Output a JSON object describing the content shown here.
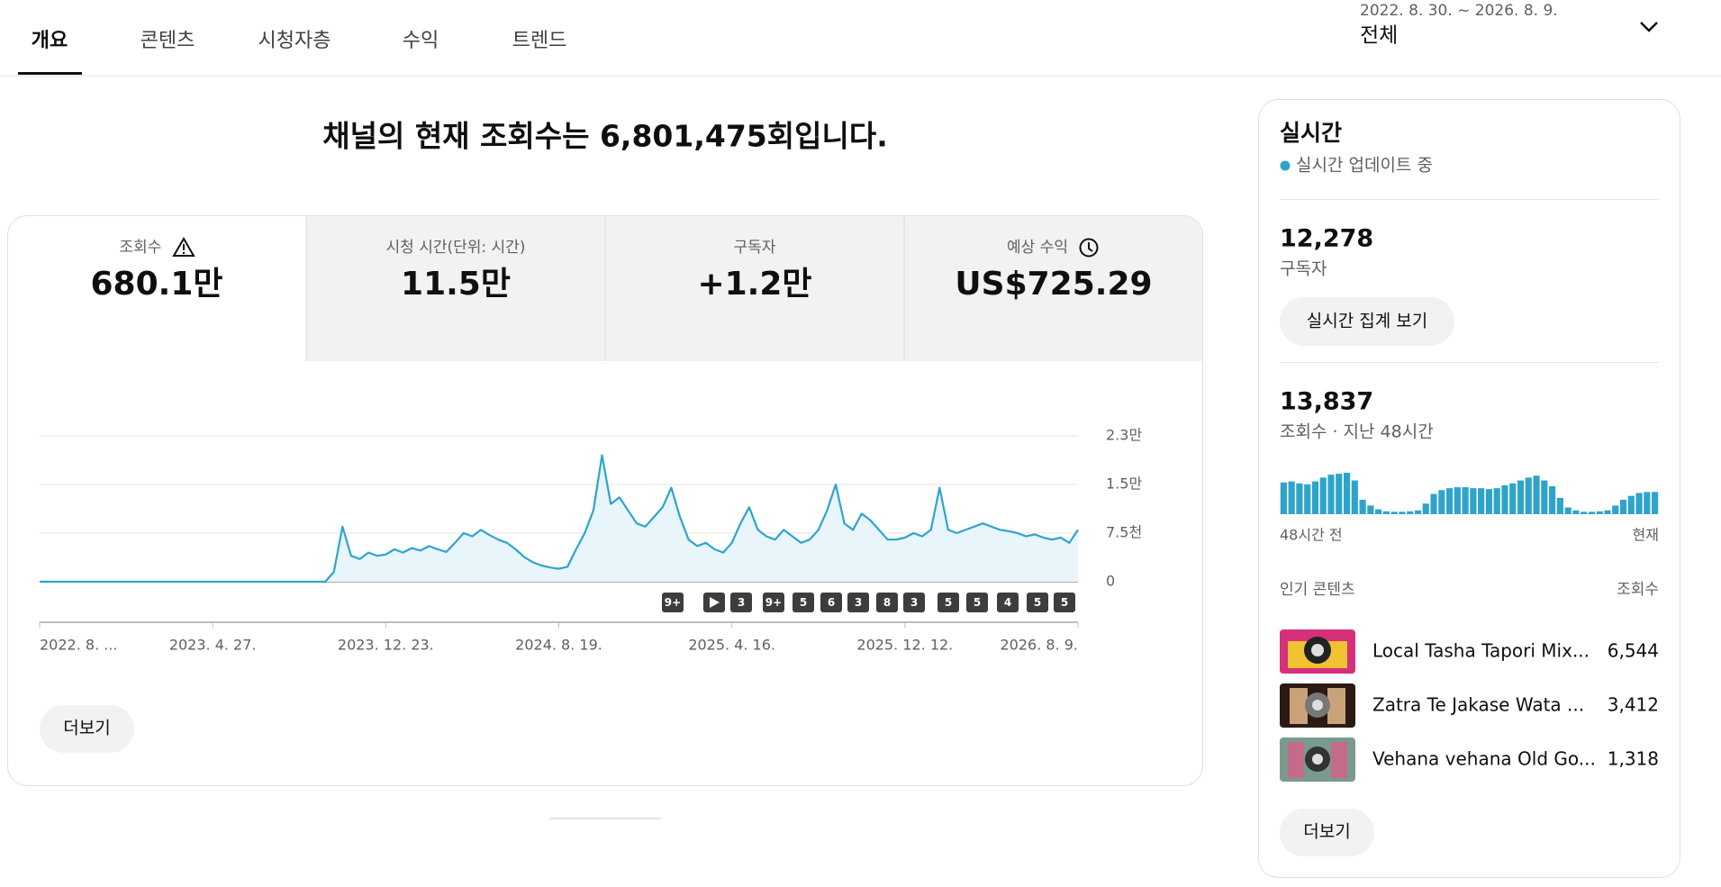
{
  "tabs": [
    "개요",
    "콘텐츠",
    "시청자층",
    "수익",
    "트렌드"
  ],
  "date_range": "2022. 8. 30. ~ 2026. 8. 9.",
  "period": "전체",
  "headline": "채널의 현재 조회수는 6,801,475회입니다.",
  "metrics": [
    {
      "label": "조회수",
      "value": "680.1만"
    },
    {
      "label": "시청 시간(단위: 시간)",
      "value": "11.5만"
    },
    {
      "label": "구독자",
      "value": "+1.2만"
    },
    {
      "label": "예상 수익",
      "value": "US$725.29"
    }
  ],
  "chart_data": {
    "type": "line",
    "color": "#2fa4cb",
    "area_color": "#e8f5fb",
    "grid": true,
    "categories": [
      "2022. 8. ...",
      null,
      null,
      null,
      null,
      null,
      null,
      null,
      null,
      null,
      null,
      null,
      null,
      null,
      null,
      null,
      null,
      null,
      null,
      null,
      "2023. 4. 27.",
      null,
      null,
      null,
      null,
      null,
      null,
      null,
      null,
      null,
      null,
      null,
      null,
      null,
      null,
      null,
      null,
      null,
      null,
      null,
      "2023. 12. 23.",
      null,
      null,
      null,
      null,
      null,
      null,
      null,
      null,
      null,
      null,
      null,
      null,
      null,
      null,
      null,
      null,
      null,
      null,
      null,
      "2024. 8. 19.",
      null,
      null,
      null,
      null,
      null,
      null,
      null,
      null,
      null,
      null,
      null,
      null,
      null,
      null,
      null,
      null,
      null,
      null,
      null,
      "2025. 4. 16.",
      null,
      null,
      null,
      null,
      null,
      null,
      null,
      null,
      null,
      null,
      null,
      null,
      null,
      null,
      null,
      null,
      null,
      null,
      null,
      "2025. 12. 12.",
      null,
      null,
      null,
      null,
      null,
      null,
      null,
      null,
      null,
      null,
      null,
      null,
      null,
      null,
      null,
      null,
      null,
      null,
      null,
      "2026. 8. 9."
    ],
    "values": [
      0,
      0,
      0,
      0,
      0,
      0,
      0,
      0,
      0,
      0,
      0,
      0,
      0,
      0,
      0,
      0,
      0,
      0,
      0,
      0,
      0,
      0,
      0,
      0,
      0,
      0,
      0,
      0,
      0,
      0,
      0,
      0,
      0,
      0,
      1500,
      8500,
      4000,
      3500,
      4500,
      4000,
      4200,
      5000,
      4500,
      5200,
      4800,
      5500,
      5000,
      4600,
      6000,
      7500,
      7000,
      8000,
      7200,
      6500,
      6000,
      5000,
      3800,
      3000,
      2500,
      2200,
      2000,
      2300,
      5000,
      7500,
      11000,
      19500,
      12000,
      13000,
      11000,
      9000,
      8500,
      10000,
      11500,
      14500,
      10000,
      6500,
      5500,
      6000,
      5000,
      4500,
      6000,
      9000,
      11500,
      8000,
      7000,
      6500,
      8000,
      7000,
      6000,
      6500,
      8000,
      11000,
      15000,
      9000,
      8000,
      10500,
      9500,
      8000,
      6500,
      6500,
      6800,
      7500,
      7000,
      8000,
      14500,
      8000,
      7500,
      8000,
      8500,
      9000,
      8500,
      8000,
      7800,
      7500,
      7000,
      7300,
      6800,
      6500,
      6800,
      6000,
      8000
    ],
    "ylim": [
      0,
      22500
    ],
    "yticks": [
      0,
      {
        "value": 7500,
        "label": "7.5천"
      },
      {
        "value": 15000,
        "label": "1.5만"
      },
      {
        "value": 22500,
        "label": "2.3만"
      }
    ],
    "badges": [
      "9+",
      "3",
      "9+",
      "5",
      "6",
      "3",
      "8",
      "3",
      "5",
      "5",
      "4",
      "5",
      "5"
    ]
  },
  "more": "더보기",
  "realtime": {
    "title": "실시간",
    "status": "실시간 업데이트 중",
    "subscribers": "12,278",
    "subscribers_label": "구독자",
    "button": "실시간 집계 보기",
    "views": "13,837",
    "views_label": "조회수 · 지난 48시간",
    "hourly": {
      "type": "bar",
      "color": "#2fa4cb",
      "values": [
        330,
        340,
        320,
        310,
        340,
        380,
        410,
        420,
        430,
        350,
        150,
        90,
        50,
        30,
        25,
        25,
        30,
        40,
        110,
        210,
        250,
        270,
        280,
        280,
        270,
        270,
        260,
        270,
        300,
        320,
        350,
        380,
        400,
        350,
        290,
        170,
        70,
        40,
        25,
        25,
        30,
        40,
        90,
        150,
        190,
        220,
        230,
        230
      ],
      "start_label": "48시간 전",
      "end_label": "현재"
    },
    "top_header": "인기 콘텐츠",
    "top_views_header": "조회수",
    "top": [
      {
        "title": "Local Tasha Tapori Mix...",
        "views": "6,544"
      },
      {
        "title": "Zatra Te Jakase Wata ...",
        "views": "3,412"
      },
      {
        "title": "Vehana vehana Old Go...",
        "views": "1,318"
      }
    ],
    "more": "더보기"
  }
}
